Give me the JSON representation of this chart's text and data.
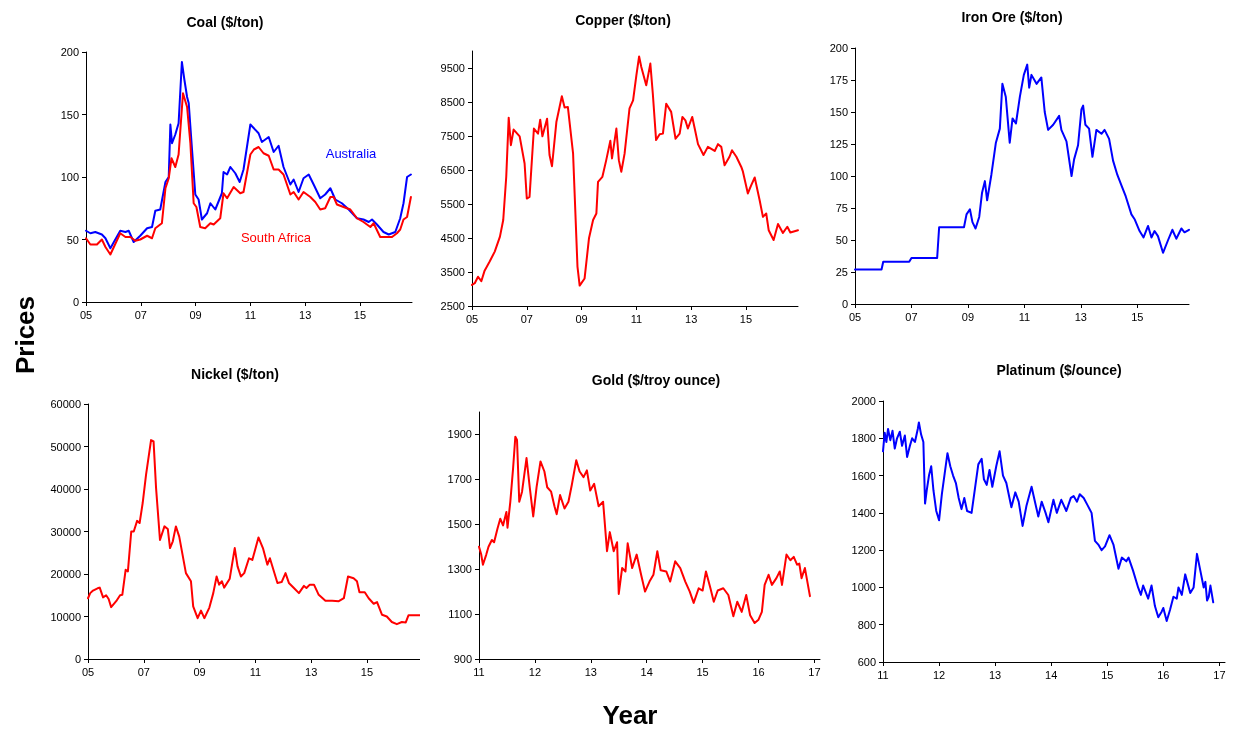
{
  "chart_data": [
    {
      "type": "line",
      "title": "Coal ($/ton)",
      "ylabel": "Prices",
      "xlim": [
        2005,
        2016.9
      ],
      "xticks": [
        {
          "value": 2005,
          "label": "05"
        },
        {
          "value": 2007,
          "label": "07"
        },
        {
          "value": 2009,
          "label": "09"
        },
        {
          "value": 2011,
          "label": "11"
        },
        {
          "value": 2013,
          "label": "13"
        },
        {
          "value": 2015,
          "label": "15"
        }
      ],
      "ylim": [
        0,
        200
      ],
      "yticks": [
        0,
        50,
        100,
        150,
        200
      ],
      "series": [
        {
          "name": "Australia",
          "color": "#0000ff",
          "x": [
            2005.0,
            2005.16,
            2005.34,
            2005.58,
            2005.71,
            2005.89,
            2006.25,
            2006.44,
            2006.56,
            2006.74,
            2006.98,
            2007.23,
            2007.41,
            2007.53,
            2007.71,
            2007.9,
            2008.02,
            2008.08,
            2008.14,
            2008.26,
            2008.38,
            2008.5,
            2008.59,
            2008.69,
            2008.75,
            2008.87,
            2008.99,
            2009.11,
            2009.23,
            2009.42,
            2009.54,
            2009.72,
            2009.96,
            2010.02,
            2010.15,
            2010.27,
            2010.45,
            2010.61,
            2010.75,
            2011.0,
            2011.3,
            2011.42,
            2011.67,
            2011.85,
            2012.03,
            2012.21,
            2012.46,
            2012.58,
            2012.76,
            2012.94,
            2013.13,
            2013.31,
            2013.55,
            2013.73,
            2013.92,
            2014.1,
            2014.34,
            2014.59,
            2014.89,
            2015.13,
            2015.32,
            2015.44,
            2015.62,
            2015.86,
            2016.05,
            2016.17,
            2016.29,
            2016.47,
            2016.59,
            2016.72,
            2016.86
          ],
          "values": [
            57,
            55,
            56,
            54,
            51,
            43,
            57,
            56,
            57,
            48,
            53,
            59,
            60,
            73,
            74,
            96,
            100,
            142,
            127,
            134,
            143,
            192,
            178,
            164,
            159,
            122,
            86,
            82,
            66,
            71,
            79,
            74,
            87,
            104,
            102,
            108,
            103,
            96,
            106,
            142,
            135,
            128,
            132,
            120,
            125,
            108,
            94,
            98,
            88,
            99,
            102,
            94,
            83,
            86,
            91,
            82,
            79,
            74,
            67,
            66,
            64,
            66,
            62,
            56,
            54,
            55,
            56,
            67,
            79,
            100,
            102
          ]
        },
        {
          "name": "South Africa",
          "color": "#ff0000",
          "x": [
            2005.0,
            2005.16,
            2005.4,
            2005.58,
            2005.71,
            2005.89,
            2006.25,
            2006.44,
            2006.62,
            2006.8,
            2006.98,
            2007.23,
            2007.41,
            2007.53,
            2007.77,
            2007.9,
            2008.02,
            2008.12,
            2008.26,
            2008.38,
            2008.54,
            2008.69,
            2008.81,
            2008.93,
            2009.03,
            2009.17,
            2009.35,
            2009.54,
            2009.66,
            2009.9,
            2010.02,
            2010.15,
            2010.39,
            2010.63,
            2010.75,
            2011.0,
            2011.13,
            2011.3,
            2011.48,
            2011.67,
            2011.85,
            2012.03,
            2012.21,
            2012.46,
            2012.58,
            2012.76,
            2012.94,
            2013.19,
            2013.37,
            2013.55,
            2013.73,
            2013.92,
            2014.04,
            2014.16,
            2014.4,
            2014.65,
            2014.89,
            2015.13,
            2015.38,
            2015.5,
            2015.74,
            2015.92,
            2016.17,
            2016.35,
            2016.47,
            2016.59,
            2016.72,
            2016.86
          ],
          "values": [
            51,
            46,
            46,
            50,
            44,
            38,
            55,
            52,
            52,
            49,
            50,
            53,
            51,
            59,
            63,
            91,
            99,
            115,
            108,
            118,
            167,
            156,
            127,
            79,
            76,
            60,
            59,
            63,
            62,
            67,
            87,
            83,
            92,
            87,
            88,
            118,
            122,
            124,
            119,
            117,
            106,
            106,
            102,
            86,
            88,
            82,
            88,
            84,
            80,
            74,
            75,
            84,
            84,
            78,
            76,
            74,
            67,
            64,
            60,
            63,
            52,
            52,
            52,
            55,
            58,
            66,
            68,
            84
          ]
        }
      ]
    },
    {
      "type": "line",
      "title": "Copper ($/ton)",
      "xlim": [
        2005,
        2016.9
      ],
      "xticks": [
        {
          "value": 2005,
          "label": "05"
        },
        {
          "value": 2007,
          "label": "07"
        },
        {
          "value": 2009,
          "label": "09"
        },
        {
          "value": 2011,
          "label": "11"
        },
        {
          "value": 2013,
          "label": "13"
        },
        {
          "value": 2015,
          "label": "15"
        }
      ],
      "ylim": [
        2500,
        10000
      ],
      "yticks": [
        2500,
        3500,
        4500,
        5500,
        6500,
        7500,
        8500,
        9500
      ],
      "color": "#ff0000",
      "x": [
        2005.0,
        2005.1,
        2005.22,
        2005.34,
        2005.46,
        2005.64,
        2005.83,
        2006.02,
        2006.14,
        2006.25,
        2006.34,
        2006.42,
        2006.52,
        2006.74,
        2006.92,
        2007.0,
        2007.1,
        2007.26,
        2007.41,
        2007.49,
        2007.57,
        2007.74,
        2007.83,
        2007.92,
        2008.08,
        2008.28,
        2008.38,
        2008.5,
        2008.69,
        2008.85,
        2008.93,
        2009.11,
        2009.27,
        2009.42,
        2009.54,
        2009.6,
        2009.76,
        2009.9,
        2010.05,
        2010.11,
        2010.27,
        2010.36,
        2010.45,
        2010.57,
        2010.75,
        2010.88,
        2011.0,
        2011.1,
        2011.18,
        2011.36,
        2011.51,
        2011.6,
        2011.72,
        2011.85,
        2011.97,
        2012.09,
        2012.27,
        2012.43,
        2012.58,
        2012.68,
        2012.79,
        2012.88,
        2013.04,
        2013.13,
        2013.25,
        2013.45,
        2013.61,
        2013.86,
        2013.98,
        2014.1,
        2014.22,
        2014.4,
        2014.49,
        2014.65,
        2014.83,
        2014.89,
        2015.07,
        2015.19,
        2015.32,
        2015.5,
        2015.62,
        2015.74,
        2015.83,
        2016.01,
        2016.17,
        2016.35,
        2016.51,
        2016.62,
        2016.9
      ],
      "values": [
        3120,
        3170,
        3360,
        3230,
        3540,
        3800,
        4100,
        4540,
        5030,
        6300,
        8040,
        7230,
        7690,
        7490,
        6690,
        5660,
        5710,
        7720,
        7570,
        7980,
        7490,
        8010,
        6940,
        6610,
        7910,
        8670,
        8340,
        8350,
        6980,
        3660,
        3100,
        3310,
        4490,
        5030,
        5220,
        6150,
        6300,
        6790,
        7360,
        6840,
        7720,
        6790,
        6450,
        6980,
        8310,
        8550,
        9280,
        9840,
        9530,
        8990,
        9630,
        8750,
        7380,
        7550,
        7570,
        8450,
        8210,
        7420,
        7570,
        8060,
        7960,
        7720,
        8060,
        7720,
        7260,
        6940,
        7180,
        7060,
        7260,
        7180,
        6640,
        6890,
        7080,
        6890,
        6590,
        6450,
        5810,
        6050,
        6280,
        5610,
        5120,
        5220,
        4730,
        4440,
        4910,
        4650,
        4830,
        4660,
        4730
      ]
    },
    {
      "type": "line",
      "title": "Iron Ore ($/ton)",
      "xlim": [
        2005,
        2016.83
      ],
      "xticks": [
        {
          "value": 2005,
          "label": "05"
        },
        {
          "value": 2007,
          "label": "07"
        },
        {
          "value": 2009,
          "label": "09"
        },
        {
          "value": 2011,
          "label": "11"
        },
        {
          "value": 2013,
          "label": "13"
        },
        {
          "value": 2015,
          "label": "15"
        }
      ],
      "ylim": [
        0,
        200
      ],
      "yticks": [
        0,
        25,
        50,
        75,
        100,
        125,
        150,
        175,
        200
      ],
      "color": "#0000ff",
      "x": [
        2005.0,
        2005.94,
        2006.0,
        2006.92,
        2007.0,
        2007.91,
        2007.98,
        2008.86,
        2008.95,
        2009.07,
        2009.16,
        2009.27,
        2009.4,
        2009.5,
        2009.6,
        2009.68,
        2009.83,
        2009.99,
        2010.13,
        2010.22,
        2010.34,
        2010.48,
        2010.58,
        2010.7,
        2010.84,
        2010.98,
        2011.1,
        2011.17,
        2011.25,
        2011.43,
        2011.6,
        2011.72,
        2011.84,
        2012.02,
        2012.23,
        2012.31,
        2012.49,
        2012.67,
        2012.76,
        2012.9,
        2013.02,
        2013.08,
        2013.16,
        2013.29,
        2013.41,
        2013.55,
        2013.73,
        2013.84,
        2014.0,
        2014.14,
        2014.29,
        2014.43,
        2014.59,
        2014.79,
        2014.91,
        2015.08,
        2015.22,
        2015.38,
        2015.5,
        2015.61,
        2015.73,
        2015.91,
        2016.09,
        2016.24,
        2016.38,
        2016.56,
        2016.67,
        2016.83
      ],
      "values": [
        27,
        27,
        33,
        33,
        36,
        36,
        60,
        60,
        70,
        74,
        64,
        59,
        68,
        87,
        96,
        81,
        101,
        126,
        137,
        172,
        162,
        126,
        145,
        141,
        162,
        179,
        187,
        169,
        179,
        172,
        177,
        150,
        136,
        140,
        147,
        136,
        127,
        100,
        113,
        124,
        152,
        155,
        140,
        137,
        115,
        136,
        133,
        136,
        129,
        112,
        101,
        93,
        84,
        70,
        66,
        57,
        52,
        61,
        52,
        57,
        53,
        40,
        50,
        58,
        51,
        59,
        56,
        58
      ]
    },
    {
      "type": "line",
      "title": "Nickel ($/ton)",
      "xlim": [
        2005,
        2016.9
      ],
      "xticks": [
        {
          "value": 2005,
          "label": "05"
        },
        {
          "value": 2007,
          "label": "07"
        },
        {
          "value": 2009,
          "label": "09"
        },
        {
          "value": 2011,
          "label": "11"
        },
        {
          "value": 2013,
          "label": "13"
        },
        {
          "value": 2015,
          "label": "15"
        }
      ],
      "ylim": [
        0,
        60000
      ],
      "yticks": [
        0,
        10000,
        20000,
        30000,
        40000,
        50000,
        60000
      ],
      "color": "#ff0000",
      "x": [
        2005.0,
        2005.08,
        2005.18,
        2005.36,
        2005.42,
        2005.54,
        2005.65,
        2005.74,
        2005.83,
        2006.01,
        2006.15,
        2006.23,
        2006.35,
        2006.43,
        2006.55,
        2006.64,
        2006.76,
        2006.85,
        2006.96,
        2007.08,
        2007.26,
        2007.35,
        2007.44,
        2007.58,
        2007.74,
        2007.86,
        2007.94,
        2008.04,
        2008.15,
        2008.27,
        2008.51,
        2008.69,
        2008.77,
        2008.93,
        2009.05,
        2009.17,
        2009.35,
        2009.49,
        2009.61,
        2009.7,
        2009.8,
        2009.88,
        2010.08,
        2010.26,
        2010.36,
        2010.48,
        2010.6,
        2010.77,
        2010.89,
        2011.11,
        2011.27,
        2011.43,
        2011.52,
        2011.79,
        2011.94,
        2012.08,
        2012.2,
        2012.38,
        2012.56,
        2012.74,
        2012.83,
        2012.95,
        2013.1,
        2013.27,
        2013.51,
        2013.75,
        2013.99,
        2014.17,
        2014.32,
        2014.52,
        2014.64,
        2014.73,
        2014.92,
        2015.06,
        2015.24,
        2015.36,
        2015.54,
        2015.71,
        2015.89,
        2016.07,
        2016.25,
        2016.39,
        2016.49,
        2016.9
      ],
      "values": [
        14300,
        15500,
        16100,
        16700,
        16800,
        14500,
        15000,
        14100,
        12200,
        13600,
        15000,
        15100,
        21000,
        20600,
        30000,
        30000,
        32500,
        32000,
        36700,
        43300,
        51500,
        51200,
        40200,
        28000,
        31200,
        30600,
        26100,
        27700,
        31200,
        28800,
        20200,
        18300,
        12400,
        9600,
        11400,
        9600,
        12100,
        15500,
        19400,
        17500,
        18300,
        16800,
        18900,
        26100,
        21800,
        19400,
        20200,
        23700,
        23300,
        28600,
        26100,
        22200,
        23700,
        17900,
        18100,
        20200,
        17900,
        16700,
        15500,
        17200,
        16700,
        17500,
        17500,
        15100,
        13700,
        13700,
        13600,
        14300,
        19400,
        19000,
        18300,
        15700,
        15700,
        14300,
        13000,
        13400,
        10400,
        10000,
        8700,
        8200,
        8700,
        8600,
        10300,
        10300
      ]
    },
    {
      "type": "line",
      "title": "Gold ($/troy ounce)",
      "xlabel": "Year",
      "xlim": [
        2011,
        2017.1
      ],
      "xticks": [
        {
          "value": 2011,
          "label": "11"
        },
        {
          "value": 2012,
          "label": "12"
        },
        {
          "value": 2013,
          "label": "13"
        },
        {
          "value": 2014,
          "label": "14"
        },
        {
          "value": 2015,
          "label": "15"
        },
        {
          "value": 2016,
          "label": "16"
        },
        {
          "value": 2017,
          "label": "17"
        }
      ],
      "ylim": [
        900,
        2000
      ],
      "yticks": [
        900,
        1100,
        1300,
        1500,
        1700,
        1900
      ],
      "color": "#ff0000",
      "x": [
        2011.0,
        2011.04,
        2011.07,
        2011.13,
        2011.17,
        2011.23,
        2011.27,
        2011.33,
        2011.38,
        2011.43,
        2011.49,
        2011.51,
        2011.56,
        2011.61,
        2011.65,
        2011.68,
        2011.72,
        2011.77,
        2011.85,
        2011.91,
        2011.97,
        2012.03,
        2012.1,
        2012.17,
        2012.22,
        2012.29,
        2012.35,
        2012.39,
        2012.45,
        2012.53,
        2012.6,
        2012.66,
        2012.74,
        2012.8,
        2012.87,
        2012.93,
        2012.99,
        2013.06,
        2013.14,
        2013.22,
        2013.29,
        2013.34,
        2013.41,
        2013.47,
        2013.5,
        2013.56,
        2013.62,
        2013.66,
        2013.74,
        2013.82,
        2013.9,
        2013.97,
        2014.05,
        2014.12,
        2014.19,
        2014.25,
        2014.35,
        2014.42,
        2014.51,
        2014.6,
        2014.69,
        2014.77,
        2014.84,
        2014.93,
        2015.0,
        2015.06,
        2015.14,
        2015.2,
        2015.27,
        2015.37,
        2015.46,
        2015.55,
        2015.62,
        2015.7,
        2015.78,
        2015.85,
        2015.93,
        2016.0,
        2016.06,
        2016.11,
        2016.18,
        2016.24,
        2016.32,
        2016.38,
        2016.42,
        2016.5,
        2016.57,
        2016.63,
        2016.69,
        2016.73,
        2016.77,
        2016.83,
        2016.92
      ],
      "values": [
        1400,
        1365,
        1320,
        1365,
        1400,
        1430,
        1420,
        1480,
        1525,
        1495,
        1555,
        1485,
        1600,
        1750,
        1890,
        1875,
        1600,
        1645,
        1795,
        1660,
        1535,
        1665,
        1780,
        1735,
        1665,
        1645,
        1580,
        1545,
        1630,
        1570,
        1600,
        1675,
        1785,
        1735,
        1710,
        1740,
        1650,
        1680,
        1580,
        1600,
        1380,
        1465,
        1380,
        1420,
        1190,
        1305,
        1290,
        1415,
        1305,
        1365,
        1275,
        1200,
        1245,
        1275,
        1380,
        1295,
        1290,
        1245,
        1335,
        1305,
        1245,
        1200,
        1150,
        1215,
        1205,
        1290,
        1215,
        1155,
        1205,
        1215,
        1185,
        1090,
        1155,
        1110,
        1185,
        1095,
        1060,
        1075,
        1110,
        1230,
        1275,
        1230,
        1260,
        1290,
        1230,
        1365,
        1340,
        1355,
        1320,
        1325,
        1260,
        1305,
        1180
      ]
    },
    {
      "type": "line",
      "title": "Platinum ($/ounce)",
      "xlim": [
        2011,
        2017.1
      ],
      "xticks": [
        {
          "value": 2011,
          "label": "11"
        },
        {
          "value": 2012,
          "label": "12"
        },
        {
          "value": 2013,
          "label": "13"
        },
        {
          "value": 2014,
          "label": "14"
        },
        {
          "value": 2015,
          "label": "15"
        },
        {
          "value": 2016,
          "label": "16"
        },
        {
          "value": 2017,
          "label": "17"
        }
      ],
      "ylim": [
        600,
        2000
      ],
      "yticks": [
        600,
        800,
        1000,
        1200,
        1400,
        1600,
        1800,
        2000
      ],
      "color": "#0000ff",
      "x": [
        2011.0,
        2011.03,
        2011.06,
        2011.09,
        2011.13,
        2011.17,
        2011.21,
        2011.25,
        2011.3,
        2011.34,
        2011.39,
        2011.43,
        2011.48,
        2011.52,
        2011.57,
        2011.62,
        2011.64,
        2011.68,
        2011.72,
        2011.75,
        2011.78,
        2011.82,
        2011.86,
        2011.9,
        2011.95,
        2012.0,
        2012.05,
        2012.1,
        2012.15,
        2012.2,
        2012.25,
        2012.3,
        2012.35,
        2012.4,
        2012.45,
        2012.5,
        2012.58,
        2012.64,
        2012.7,
        2012.76,
        2012.8,
        2012.85,
        2012.9,
        2012.95,
        2013.02,
        2013.08,
        2013.14,
        2013.2,
        2013.29,
        2013.36,
        2013.42,
        2013.49,
        2013.56,
        2013.65,
        2013.71,
        2013.77,
        2013.83,
        2013.9,
        2013.95,
        2014.04,
        2014.1,
        2014.18,
        2014.27,
        2014.35,
        2014.4,
        2014.46,
        2014.51,
        2014.58,
        2014.65,
        2014.72,
        2014.78,
        2014.84,
        2014.9,
        2014.96,
        2015.04,
        2015.11,
        2015.2,
        2015.26,
        2015.34,
        2015.38,
        2015.46,
        2015.55,
        2015.6,
        2015.64,
        2015.73,
        2015.79,
        2015.85,
        2015.91,
        2015.97,
        2016.0,
        2016.06,
        2016.12,
        2016.18,
        2016.24,
        2016.27,
        2016.33,
        2016.39,
        2016.48,
        2016.54,
        2016.57,
        2016.6,
        2016.66,
        2016.72,
        2016.75,
        2016.78,
        2016.81,
        2016.84,
        2016.89
      ],
      "values": [
        1730,
        1830,
        1780,
        1850,
        1790,
        1840,
        1745,
        1800,
        1835,
        1760,
        1815,
        1700,
        1760,
        1800,
        1780,
        1850,
        1885,
        1820,
        1780,
        1450,
        1520,
        1600,
        1650,
        1520,
        1410,
        1360,
        1500,
        1610,
        1720,
        1650,
        1600,
        1560,
        1480,
        1420,
        1480,
        1410,
        1400,
        1530,
        1660,
        1690,
        1580,
        1550,
        1630,
        1540,
        1650,
        1730,
        1600,
        1560,
        1430,
        1510,
        1460,
        1330,
        1440,
        1540,
        1460,
        1380,
        1460,
        1400,
        1350,
        1470,
        1400,
        1470,
        1410,
        1480,
        1490,
        1460,
        1500,
        1480,
        1440,
        1400,
        1250,
        1230,
        1200,
        1220,
        1280,
        1230,
        1100,
        1160,
        1140,
        1160,
        1090,
        1000,
        960,
        1010,
        940,
        1010,
        900,
        840,
        870,
        890,
        820,
        880,
        950,
        940,
        1000,
        960,
        1070,
        970,
        1000,
        1090,
        1180,
        1090,
        1000,
        1030,
        930,
        950,
        1010,
        920
      ]
    }
  ]
}
